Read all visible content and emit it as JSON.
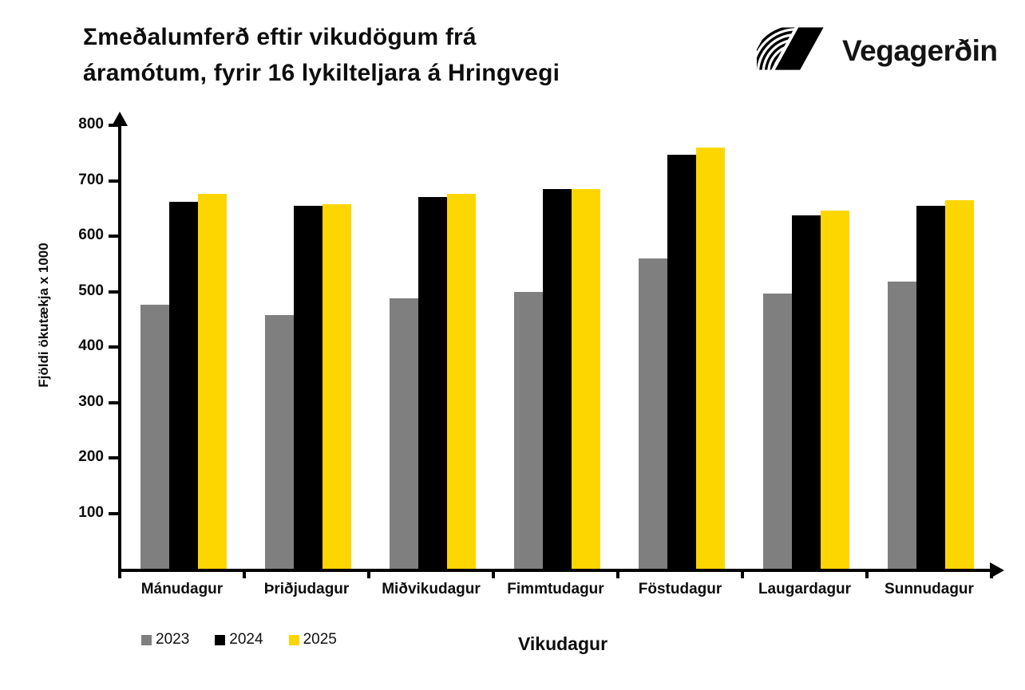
{
  "title": {
    "line1": "Σmeðalumferð eftir vikudögum frá",
    "line2": "áramótum, fyrir 16 lykilteljara á Hringvegi"
  },
  "logo": {
    "text": "Vegagerðin"
  },
  "chart_data": {
    "type": "bar",
    "title": "Σmeðalumferð eftir vikudögum frá áramótum, fyrir 16 lykilteljara á Hringvegi",
    "xlabel": "Vikudagur",
    "ylabel": "Fjöldi ökutækja x 1000",
    "categories": [
      "Mánudagur",
      "Þriðjudagur",
      "Miðvikudagur",
      "Fimmtudagur",
      "Föstudagur",
      "Laugardagur",
      "Sunnudagur"
    ],
    "series": [
      {
        "name": "2023",
        "color": "#7F7F7F",
        "values": [
          476,
          458,
          488,
          500,
          560,
          496,
          518
        ]
      },
      {
        "name": "2024",
        "color": "#000000",
        "values": [
          662,
          654,
          670,
          685,
          747,
          638,
          655
        ]
      },
      {
        "name": "2025",
        "color": "#FDD600",
        "values": [
          676,
          658,
          676,
          685,
          760,
          646,
          665
        ]
      }
    ],
    "ylim": [
      0,
      800
    ],
    "yticks": [
      100,
      200,
      300,
      400,
      500,
      600,
      700,
      800
    ],
    "grid": false,
    "legend_position": "bottom-left"
  }
}
